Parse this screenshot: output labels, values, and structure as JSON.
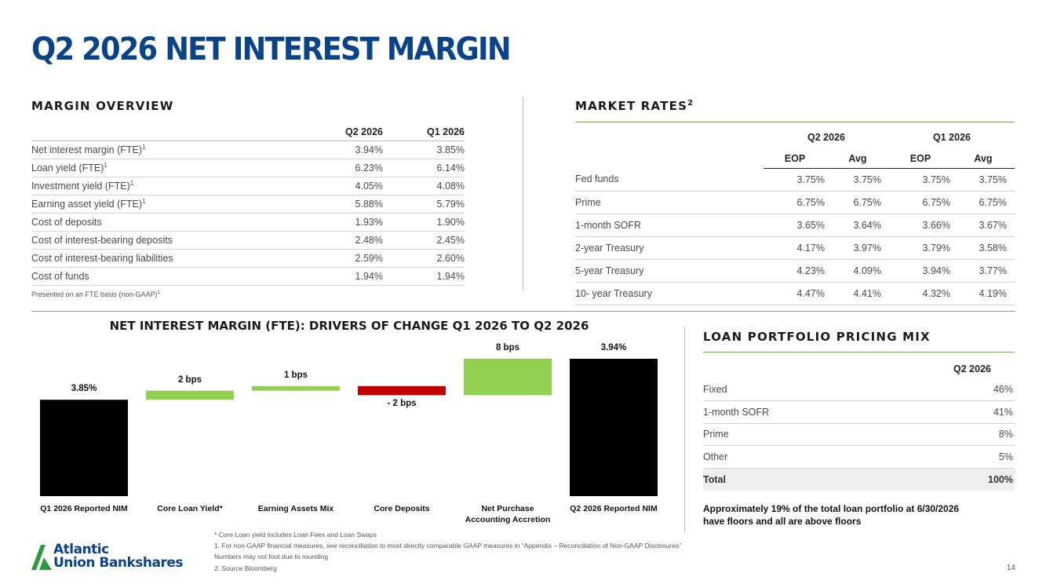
{
  "title": "Q2 2026 NET INTEREST MARGIN",
  "margin_overview": {
    "heading": "MARGIN OVERVIEW",
    "columns": [
      "Q2 2026",
      "Q1 2026"
    ],
    "rows": [
      {
        "label": "Net interest margin  (FTE)",
        "sup": "1",
        "q2": "3.94%",
        "q1": "3.85%"
      },
      {
        "label": "Loan yield (FTE)",
        "sup": "1",
        "q2": "6.23%",
        "q1": "6.14%"
      },
      {
        "label": "Investment yield (FTE)",
        "sup": "1",
        "q2": "4.05%",
        "q1": "4.08%"
      },
      {
        "label": "Earning asset yield (FTE)",
        "sup": "1",
        "q2": "5.88%",
        "q1": "5.79%"
      },
      {
        "label": "Cost of deposits",
        "sup": "",
        "q2": "1.93%",
        "q1": "1.90%"
      },
      {
        "label": "Cost of interest-bearing deposits",
        "sup": "",
        "q2": "2.48%",
        "q1": "2.45%"
      },
      {
        "label": "Cost of interest-bearing liabilities",
        "sup": "",
        "q2": "2.59%",
        "q1": "2.60%"
      },
      {
        "label": "Cost of funds",
        "sup": "",
        "q2": "1.94%",
        "q1": "1.94%"
      }
    ],
    "note": "Presented on an FTE basis (non-GAAP)",
    "note_sup": "1"
  },
  "market_rates": {
    "heading": "MARKET RATES",
    "heading_sup": "2",
    "groups": [
      "Q2 2026",
      "Q1 2026"
    ],
    "subcolumns": [
      "EOP",
      "Avg",
      "EOP",
      "Avg"
    ],
    "rows": [
      {
        "label": "Fed funds",
        "values": [
          "3.75%",
          "3.75%",
          "3.75%",
          "3.75%"
        ]
      },
      {
        "label": "Prime",
        "values": [
          "6.75%",
          "6.75%",
          "6.75%",
          "6.75%"
        ]
      },
      {
        "label": "1-month SOFR",
        "values": [
          "3.65%",
          "3.64%",
          "3.66%",
          "3.67%"
        ]
      },
      {
        "label": "2-year Treasury",
        "values": [
          "4.17%",
          "3.97%",
          "3.79%",
          "3.58%"
        ]
      },
      {
        "label": "5-year Treasury",
        "values": [
          "4.23%",
          "4.09%",
          "3.94%",
          "3.77%"
        ]
      },
      {
        "label": "10- year Treasury",
        "values": [
          "4.47%",
          "4.41%",
          "4.32%",
          "4.19%"
        ]
      }
    ]
  },
  "waterfall": {
    "heading": "NET INTEREST MARGIN (FTE): DRIVERS OF CHANGE Q1 2026 TO Q2 2026",
    "footnote": "* Core Loan yield includes Loan Fees and Loan Swaps"
  },
  "chart_data": {
    "type": "bar",
    "title": "NET INTEREST MARGIN (FTE): DRIVERS OF CHANGE Q1 2026 TO Q2 2026",
    "categories": [
      "Q1 2026 Reported NIM",
      "Core Loan Yield*",
      "Earning Assets Mix",
      "Core Deposits",
      "Net Purchase Accounting Accretion",
      "Q2 2026 Reported NIM"
    ],
    "values_bps": [
      385,
      2,
      1,
      -2,
      8,
      394
    ],
    "kinds": [
      "total",
      "delta",
      "delta",
      "delta",
      "delta",
      "total"
    ],
    "labels": [
      "3.85%",
      "2 bps",
      "1 bps",
      "- 2 bps",
      "8 bps",
      "3.94%"
    ],
    "colors": {
      "total": "#000000",
      "increase": "#92d050",
      "decrease": "#c00000"
    }
  },
  "loan_pricing": {
    "heading": "LOAN PORTFOLIO PRICING MIX",
    "column": "Q2 2026",
    "rows": [
      {
        "label": "Fixed",
        "value": "46%"
      },
      {
        "label": "1-month SOFR",
        "value": "41%"
      },
      {
        "label": "Prime",
        "value": "8%"
      },
      {
        "label": "Other",
        "value": "5%"
      },
      {
        "label": "Total",
        "value": "100%"
      }
    ],
    "note_line1": "Approximately 19% of the total loan portfolio at 6/30/2026",
    "note_line2": "have floors and all are above floors"
  },
  "footnotes": [
    "1. For non-GAAP financial measures, see reconciliation to most directly comparable GAAP measures in “Appendix – Reconciliation of Non-GAAP Disclosures”",
    "Numbers may not foot due to rounding",
    "2. Source Bloomberg"
  ],
  "logo": {
    "line1": "Atlantic",
    "line2": "Union Bankshares",
    "color": "#0a4487",
    "accent": "#2e9a3e"
  },
  "page_number": "14"
}
